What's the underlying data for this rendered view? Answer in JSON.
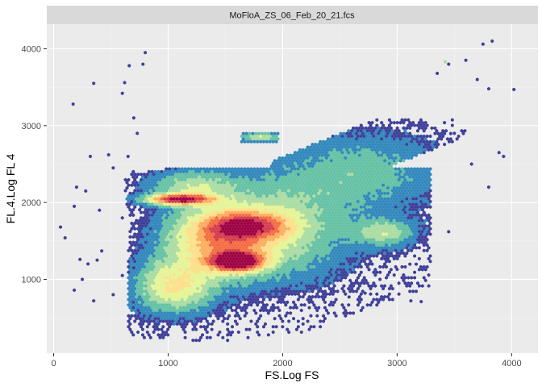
{
  "chart_data": {
    "type": "hexbin",
    "facet_label": "MoFloA_ZS_06_Feb_20_21.fcs",
    "xlabel": "FS.Log FS",
    "ylabel": "FL.4.Log FL 4",
    "xlim": [
      -60,
      4230
    ],
    "ylim": [
      40,
      4320
    ],
    "x_ticks": [
      0,
      1000,
      2000,
      3000,
      4000
    ],
    "y_ticks": [
      1000,
      2000,
      3000,
      4000
    ],
    "x_tick_labels": [
      "0",
      "1000",
      "2000",
      "3000",
      "4000"
    ],
    "y_tick_labels": [
      "1000",
      "2000",
      "3000",
      "4000"
    ],
    "grid": true,
    "legend": "none",
    "colors": {
      "panel_bg": "#ebebeb",
      "strip_bg": "#d9d9d9",
      "grid_major": "#ffffff",
      "grid_minor": "#f4f4f4",
      "palette_low_to_high": [
        "#3f3f9a",
        "#3288bd",
        "#66c2a5",
        "#abdda4",
        "#e6f598",
        "#fee08b",
        "#fdae61",
        "#f46d43",
        "#d53e4f",
        "#9e0142"
      ]
    },
    "density_regions": [
      {
        "x": 1600,
        "y": 1230,
        "sx": 150,
        "sy": 80,
        "level": 1.0
      },
      {
        "x": 1100,
        "y": 2040,
        "sx": 190,
        "sy": 45,
        "level": 0.85
      },
      {
        "x": 1450,
        "y": 1500,
        "sx": 320,
        "sy": 300,
        "level": 0.55
      },
      {
        "x": 1700,
        "y": 1700,
        "sx": 250,
        "sy": 120,
        "level": 0.5
      },
      {
        "x": 1050,
        "y": 900,
        "sx": 230,
        "sy": 230,
        "level": 0.45
      },
      {
        "x": 1950,
        "y": 1650,
        "sx": 450,
        "sy": 450,
        "level": 0.3
      },
      {
        "x": 2700,
        "y": 2400,
        "sx": 500,
        "sy": 350,
        "level": 0.2
      },
      {
        "x": 2900,
        "y": 1600,
        "sx": 180,
        "sy": 120,
        "level": 0.3
      },
      {
        "x": 1800,
        "y": 2850,
        "sx": 120,
        "sy": 40,
        "level": 0.35
      },
      {
        "x": 1200,
        "y": 2200,
        "sx": 250,
        "sy": 150,
        "level": 0.3
      }
    ],
    "outliers": [
      [
        170,
        3280
      ],
      [
        350,
        3550
      ],
      [
        600,
        3420
      ],
      [
        620,
        3560
      ],
      [
        660,
        3780
      ],
      [
        780,
        3800
      ],
      [
        800,
        3950
      ],
      [
        700,
        3100
      ],
      [
        730,
        2900
      ],
      [
        320,
        2600
      ],
      [
        480,
        2620
      ],
      [
        650,
        2600
      ],
      [
        200,
        2200
      ],
      [
        180,
        1950
      ],
      [
        60,
        1680
      ],
      [
        100,
        1540
      ],
      [
        230,
        1260
      ],
      [
        300,
        1200
      ],
      [
        380,
        1250
      ],
      [
        420,
        1370
      ],
      [
        250,
        1000
      ],
      [
        180,
        860
      ],
      [
        350,
        720
      ],
      [
        520,
        800
      ],
      [
        600,
        1050
      ],
      [
        700,
        1150
      ],
      [
        3600,
        3850
      ],
      [
        3450,
        3800
      ],
      [
        3350,
        3680
      ],
      [
        3700,
        3600
      ],
      [
        3800,
        3480
      ],
      [
        3750,
        4060
      ],
      [
        3830,
        4100
      ],
      [
        4020,
        3470
      ],
      [
        3890,
        2650
      ],
      [
        3930,
        2600
      ],
      [
        3800,
        2200
      ],
      [
        3450,
        1620
      ],
      [
        2580,
        770
      ],
      [
        2720,
        820
      ],
      [
        3120,
        720
      ],
      [
        3210,
        710
      ],
      [
        2850,
        1000
      ],
      [
        3000,
        1130
      ],
      [
        2400,
        1020
      ],
      [
        2300,
        900
      ],
      [
        600,
        1800
      ],
      [
        400,
        1900
      ],
      [
        280,
        2150
      ],
      [
        520,
        2450
      ],
      [
        3500,
        2900
      ],
      [
        3650,
        2500
      ]
    ]
  }
}
